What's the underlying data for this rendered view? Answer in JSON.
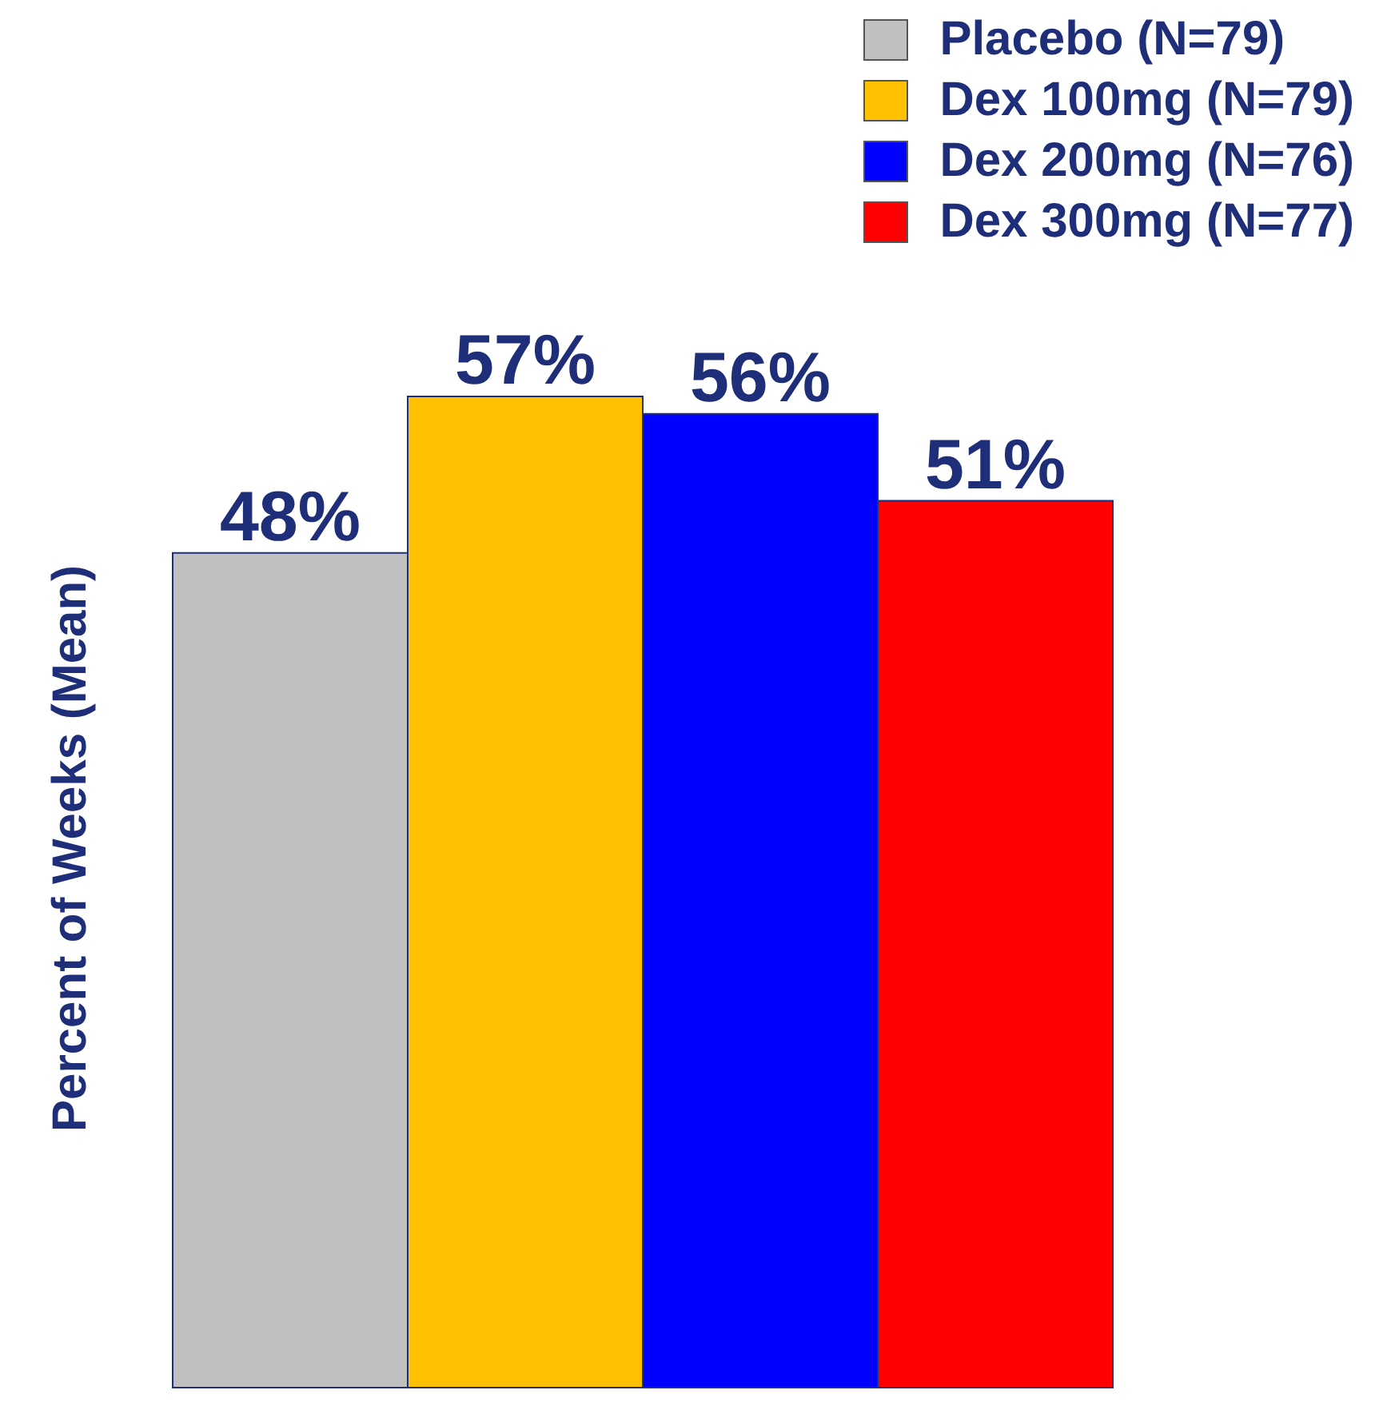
{
  "chart_data": {
    "type": "bar",
    "ylabel": "Percent of Weeks (Mean)",
    "categories": [
      null
    ],
    "series": [
      {
        "name": "Placebo (N=79)",
        "color": "#c0c0c0",
        "values": [
          48
        ],
        "value_labels": [
          "48%"
        ]
      },
      {
        "name": "Dex 100mg (N=79)",
        "color": "#ffc000",
        "values": [
          57
        ],
        "value_labels": [
          "57%"
        ]
      },
      {
        "name": "Dex 200mg (N=76)",
        "color": "#0000ff",
        "values": [
          56
        ],
        "value_labels": [
          "56%"
        ]
      },
      {
        "name": "Dex 300mg (N=77)",
        "color": "#ff0000",
        "values": [
          51
        ],
        "value_labels": [
          "51%"
        ]
      }
    ],
    "legend": "top right"
  }
}
